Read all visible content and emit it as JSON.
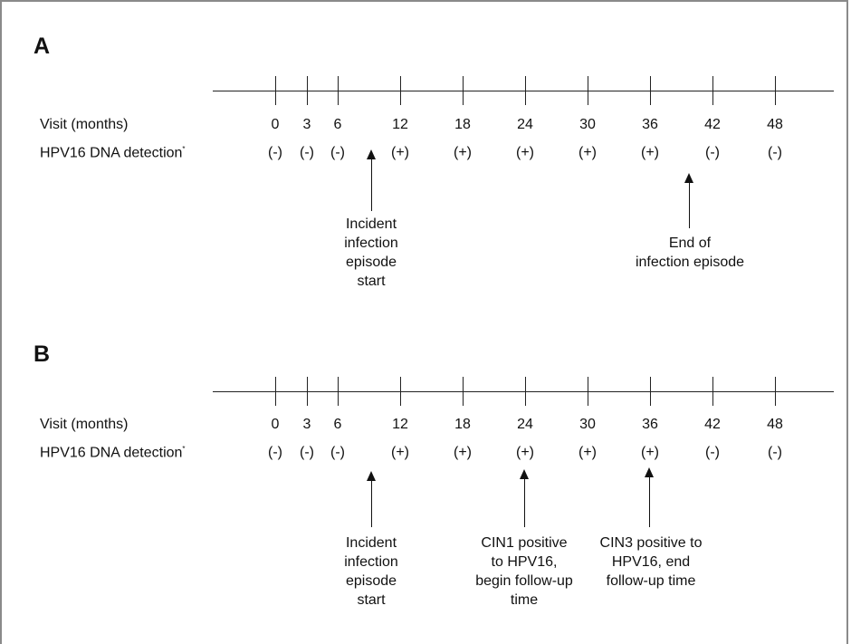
{
  "panels": [
    {
      "letter": "A",
      "visit_label": "Visit (months)",
      "detection_label": "HPV16 DNA detection",
      "detection_mark": "*",
      "visits": [
        "0",
        "3",
        "6",
        "12",
        "18",
        "24",
        "30",
        "36",
        "42",
        "48"
      ],
      "detections": [
        "(-)",
        "(-)",
        "(-)",
        "(+)",
        "(+)",
        "(+)",
        "(+)",
        "(+)",
        "(-)",
        "(-)"
      ],
      "annotations": [
        "Incident\ninfection\nepisode\nstart",
        "End of\ninfection episode"
      ]
    },
    {
      "letter": "B",
      "visit_label": "Visit (months)",
      "detection_label": "HPV16 DNA detection",
      "detection_mark": "*",
      "visits": [
        "0",
        "3",
        "6",
        "12",
        "18",
        "24",
        "30",
        "36",
        "42",
        "48"
      ],
      "detections": [
        "(-)",
        "(-)",
        "(-)",
        "(+)",
        "(+)",
        "(+)",
        "(+)",
        "(+)",
        "(-)",
        "(-)"
      ],
      "annotations": [
        "Incident\ninfection\nepisode\nstart",
        "CIN1 positive\nto HPV16,\nbegin follow-up\ntime",
        "CIN3 positive to\nHPV16, end\nfollow-up time"
      ]
    }
  ]
}
